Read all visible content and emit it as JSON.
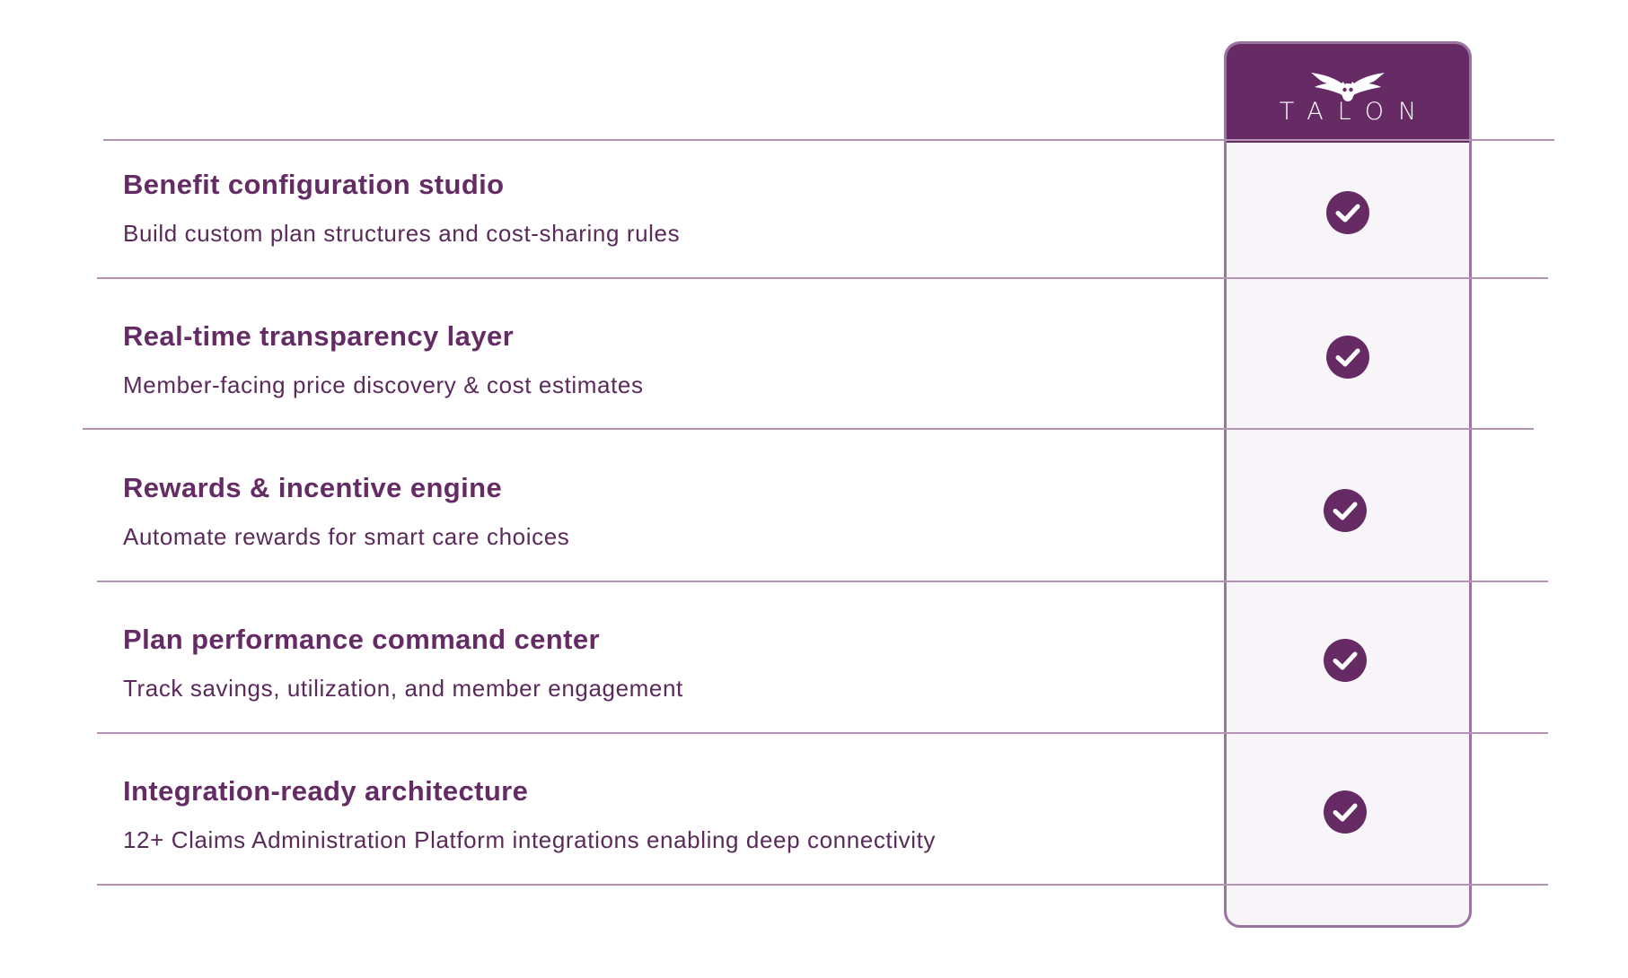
{
  "brand": {
    "name": "TALON",
    "logo_icon": "owl-icon",
    "header_color": "#662b65",
    "column_bg": "#f8f5f8",
    "border_color": "#9a739f"
  },
  "features": [
    {
      "title": "Benefit configuration studio",
      "description": "Build custom plan structures and cost-sharing rules",
      "included": true
    },
    {
      "title": "Real-time transparency layer",
      "description": "Member-facing price discovery & cost estimates",
      "included": true
    },
    {
      "title": "Rewards & incentive engine",
      "description": "Automate rewards for smart care choices",
      "included": true
    },
    {
      "title": "Plan performance command center",
      "description": "Track savings, utilization, and member engagement",
      "included": true
    },
    {
      "title": "Integration-ready architecture",
      "description": "12+ Claims Administration Platform integrations enabling deep connectivity",
      "included": true
    }
  ],
  "colors": {
    "title_text": "#652b65",
    "description_text": "#5a2a5a",
    "divider": "#b493b5",
    "check_fill": "#662b65"
  }
}
